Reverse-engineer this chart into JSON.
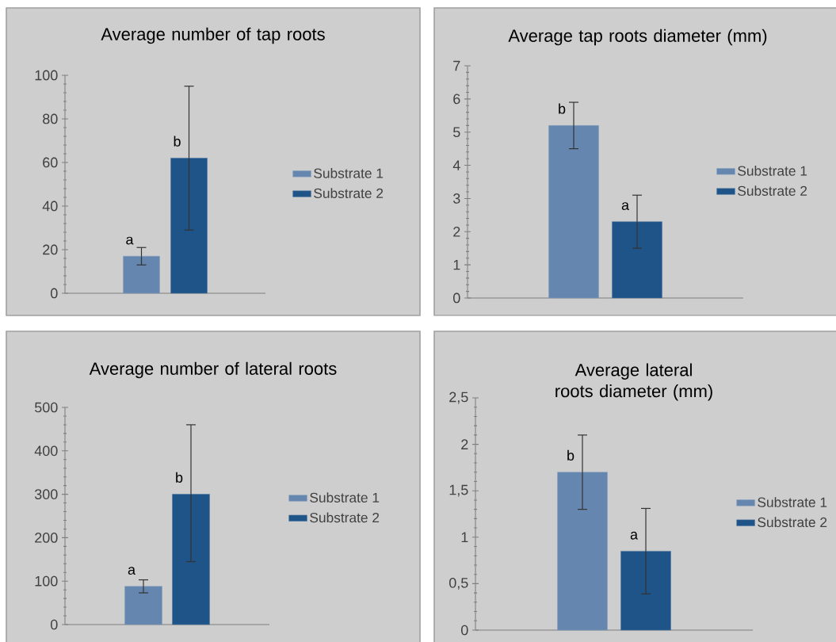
{
  "chart_data": [
    {
      "type": "bar",
      "title": "Average number of tap roots",
      "categories": [
        null
      ],
      "series": [
        {
          "name": "Substrate 1",
          "color": "#6586ae",
          "values": [
            17
          ],
          "errors": [
            4
          ],
          "value_labels": [
            "a"
          ]
        },
        {
          "name": "Substrate 2",
          "color": "#1f5488",
          "values": [
            62
          ],
          "errors": [
            33
          ],
          "value_labels": [
            "b"
          ]
        }
      ],
      "ylim": [
        0,
        100
      ],
      "yticks": [
        0,
        20,
        40,
        60,
        80,
        100
      ],
      "legend": "right",
      "tick_labels": "y"
    },
    {
      "type": "bar",
      "title": "Average tap roots diameter (mm)",
      "categories": [
        null
      ],
      "series": [
        {
          "name": "Substrate 1",
          "color": "#6586ae",
          "values": [
            5.2
          ],
          "errors": [
            0.7
          ],
          "value_labels": [
            "b"
          ]
        },
        {
          "name": "Substrate 2",
          "color": "#1f5488",
          "values": [
            2.3
          ],
          "errors": [
            0.8
          ],
          "value_labels": [
            "a"
          ]
        }
      ],
      "ylim": [
        0,
        7
      ],
      "yticks": [
        0,
        1,
        2,
        3,
        4,
        5,
        6,
        7
      ],
      "legend": "right",
      "tick_labels": "y"
    },
    {
      "type": "bar",
      "title": "Average number of lateral roots",
      "categories": [
        null
      ],
      "series": [
        {
          "name": "Substrate 1",
          "color": "#6586ae",
          "values": [
            88
          ],
          "errors": [
            15
          ],
          "value_labels": [
            "a"
          ]
        },
        {
          "name": "Substrate 2",
          "color": "#1f5488",
          "values": [
            300
          ],
          "errors": [
            [
              145,
              460
            ]
          ],
          "value_labels": [
            "b"
          ]
        }
      ],
      "ylim": [
        0,
        500
      ],
      "yticks": [
        0,
        100,
        200,
        300,
        400,
        500
      ],
      "legend": "right",
      "tick_labels": "y"
    },
    {
      "type": "bar",
      "title": "Average lateral roots diameter (mm)",
      "categories": [
        null
      ],
      "series": [
        {
          "name": "Substrate 1",
          "color": "#6586ae",
          "values": [
            1.7
          ],
          "errors": [
            0.4
          ],
          "value_labels": [
            "b"
          ]
        },
        {
          "name": "Substrate 2",
          "color": "#1f5488",
          "values": [
            0.85
          ],
          "errors": [
            0.46
          ],
          "value_labels": [
            "a"
          ]
        }
      ],
      "ylim": [
        0,
        2.5
      ],
      "yticks": [
        0,
        {
          "value": 0.5,
          "label": "0,5"
        },
        1,
        {
          "value": 1.5,
          "label": "1,5"
        },
        2,
        {
          "value": 2.5,
          "label": "2,5"
        }
      ],
      "legend": "right",
      "tick_labels": "y"
    }
  ]
}
